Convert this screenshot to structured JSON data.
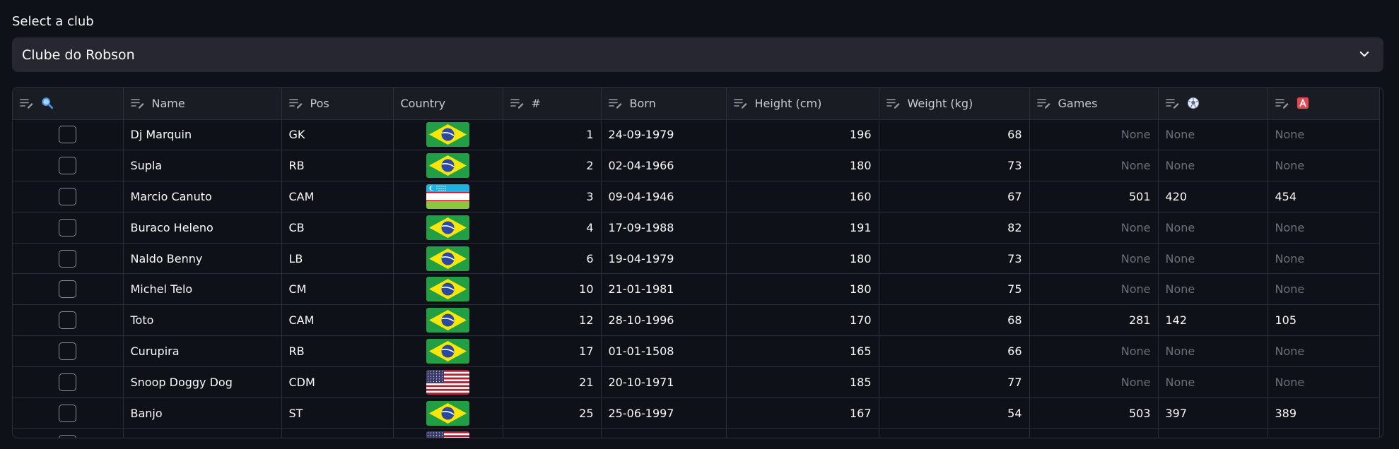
{
  "select": {
    "label": "Select a club",
    "value": "Clube do Robson"
  },
  "columns": [
    {
      "key": "select",
      "label": "",
      "icon": "search-icon",
      "editable": true
    },
    {
      "key": "name",
      "label": "Name",
      "editable": true
    },
    {
      "key": "pos",
      "label": "Pos",
      "editable": true
    },
    {
      "key": "country",
      "label": "Country",
      "editable": false
    },
    {
      "key": "number",
      "label": "#",
      "editable": true
    },
    {
      "key": "born",
      "label": "Born",
      "editable": true
    },
    {
      "key": "height",
      "label": "Height (cm)",
      "editable": true
    },
    {
      "key": "weight",
      "label": "Weight (kg)",
      "editable": true
    },
    {
      "key": "games",
      "label": "Games",
      "editable": true
    },
    {
      "key": "goals",
      "label": "",
      "icon": "soccer-ball-icon",
      "editable": true
    },
    {
      "key": "assists",
      "label": "",
      "icon": "letter-a-icon",
      "editable": true
    }
  ],
  "rows": [
    {
      "name": "Dj Marquin",
      "pos": "GK",
      "country": "brazil-flag",
      "number": "1",
      "born": "24-09-1979",
      "height": "196",
      "weight": "68",
      "games": "None",
      "goals": "None",
      "assists": "None"
    },
    {
      "name": "Supla",
      "pos": "RB",
      "country": "brazil-flag",
      "number": "2",
      "born": "02-04-1966",
      "height": "180",
      "weight": "73",
      "games": "None",
      "goals": "None",
      "assists": "None"
    },
    {
      "name": "Marcio Canuto",
      "pos": "CAM",
      "country": "uzbekistan-flag",
      "number": "3",
      "born": "09-04-1946",
      "height": "160",
      "weight": "67",
      "games": "501",
      "goals": "420",
      "assists": "454"
    },
    {
      "name": "Buraco Heleno",
      "pos": "CB",
      "country": "brazil-flag",
      "number": "4",
      "born": "17-09-1988",
      "height": "191",
      "weight": "82",
      "games": "None",
      "goals": "None",
      "assists": "None"
    },
    {
      "name": "Naldo Benny",
      "pos": "LB",
      "country": "brazil-flag",
      "number": "6",
      "born": "19-04-1979",
      "height": "180",
      "weight": "73",
      "games": "None",
      "goals": "None",
      "assists": "None"
    },
    {
      "name": "Michel Telo",
      "pos": "CM",
      "country": "brazil-flag",
      "number": "10",
      "born": "21-01-1981",
      "height": "180",
      "weight": "75",
      "games": "None",
      "goals": "None",
      "assists": "None"
    },
    {
      "name": "Toto",
      "pos": "CAM",
      "country": "brazil-flag",
      "number": "12",
      "born": "28-10-1996",
      "height": "170",
      "weight": "68",
      "games": "281",
      "goals": "142",
      "assists": "105"
    },
    {
      "name": "Curupira",
      "pos": "RB",
      "country": "brazil-flag",
      "number": "17",
      "born": "01-01-1508",
      "height": "165",
      "weight": "66",
      "games": "None",
      "goals": "None",
      "assists": "None"
    },
    {
      "name": "Snoop Doggy Dog",
      "pos": "CDM",
      "country": "usa-flag",
      "number": "21",
      "born": "20-10-1971",
      "height": "185",
      "weight": "77",
      "games": "None",
      "goals": "None",
      "assists": "None"
    },
    {
      "name": "Banjo",
      "pos": "ST",
      "country": "brazil-flag",
      "number": "25",
      "born": "25-06-1997",
      "height": "167",
      "weight": "54",
      "games": "503",
      "goals": "397",
      "assists": "389"
    },
    {
      "name": "",
      "pos": "",
      "country": "usa-flag",
      "number": "",
      "born": "",
      "height": "",
      "weight": "",
      "games": "",
      "goals": "",
      "assists": ""
    }
  ],
  "colors": {
    "background": "#0e1117",
    "surface": "#262730",
    "header": "#1a1c24",
    "border": "#2b2e37",
    "muted_text": "#6d7078"
  }
}
